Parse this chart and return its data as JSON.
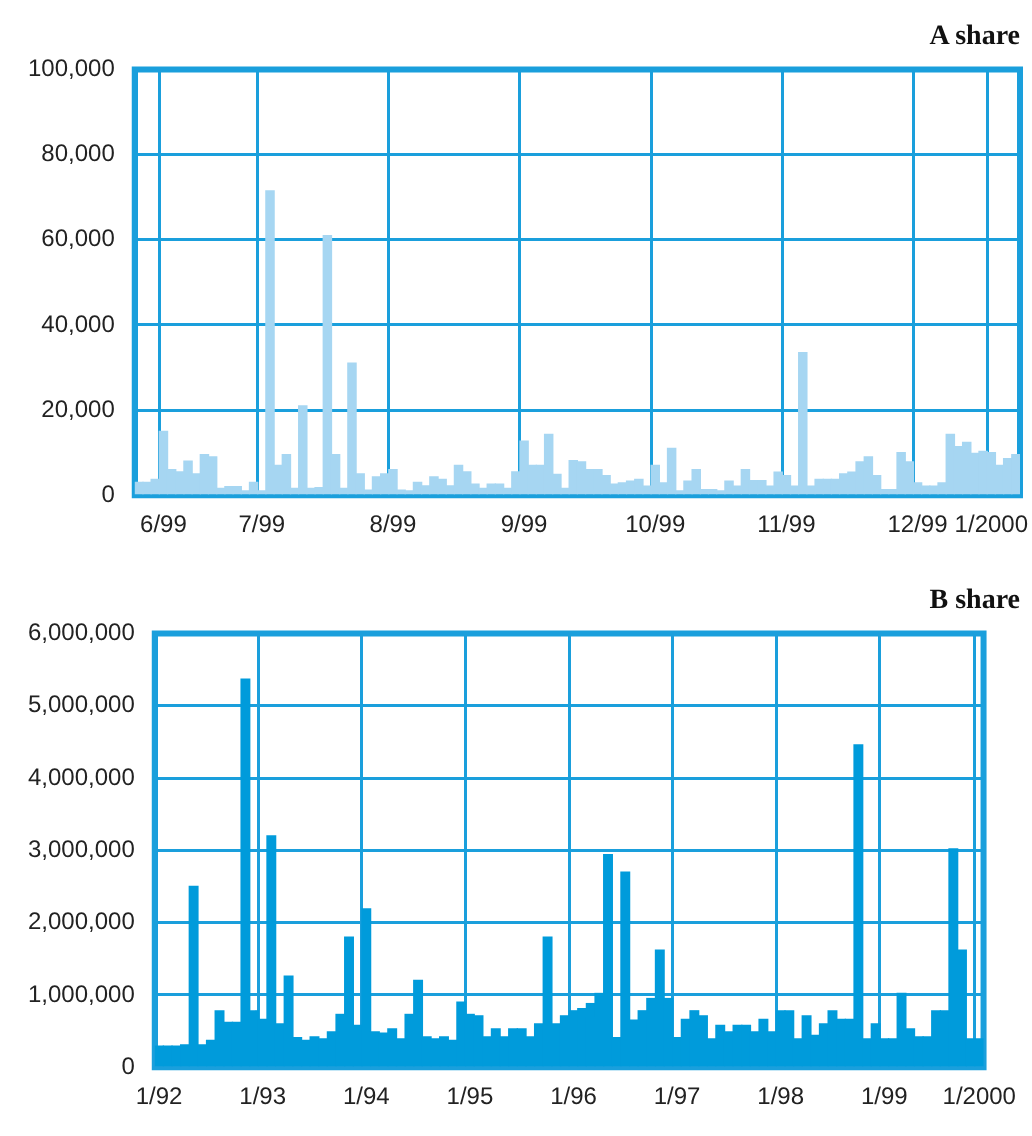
{
  "chart_data": [
    {
      "type": "bar",
      "title": "A share",
      "categories": [
        null,
        null,
        null,
        "6/99",
        null,
        null,
        null,
        null,
        null,
        null,
        null,
        null,
        null,
        null,
        null,
        "7/99",
        null,
        null,
        null,
        null,
        null,
        null,
        null,
        null,
        null,
        null,
        null,
        null,
        null,
        null,
        null,
        "8/99",
        null,
        null,
        null,
        null,
        null,
        null,
        null,
        null,
        null,
        null,
        null,
        null,
        null,
        null,
        null,
        "9/99",
        null,
        null,
        null,
        null,
        null,
        null,
        null,
        null,
        null,
        null,
        null,
        null,
        null,
        null,
        null,
        "10/99",
        null,
        null,
        null,
        null,
        null,
        null,
        null,
        null,
        null,
        null,
        null,
        null,
        null,
        null,
        null,
        "11/99",
        null,
        null,
        null,
        null,
        null,
        null,
        null,
        null,
        null,
        null,
        null,
        null,
        null,
        null,
        null,
        "12/99",
        null,
        null,
        null,
        null,
        null,
        null,
        null,
        null,
        "1/2000",
        null,
        null,
        null
      ],
      "values": [
        3000,
        3000,
        3700,
        15000,
        6000,
        5500,
        8000,
        5000,
        9500,
        9000,
        1600,
        2000,
        2000,
        1000,
        3000,
        1000,
        71500,
        7000,
        9500,
        1600,
        21000,
        1600,
        1800,
        61000,
        9500,
        1600,
        31000,
        5000,
        1200,
        4300,
        5000,
        6000,
        1200,
        1000,
        3000,
        2200,
        4300,
        3700,
        2200,
        7000,
        5500,
        2600,
        1600,
        2600,
        2600,
        1600,
        5500,
        12700,
        7000,
        7000,
        14300,
        4900,
        1600,
        8100,
        7800,
        6000,
        6000,
        4600,
        2600,
        2900,
        3300,
        3700,
        2100,
        7000,
        2900,
        11000,
        1000,
        3300,
        6000,
        1300,
        1300,
        1000,
        3300,
        2100,
        6000,
        3400,
        3400,
        2100,
        5400,
        4600,
        2100,
        33500,
        2100,
        3700,
        3700,
        3700,
        5000,
        5400,
        7800,
        9000,
        4600,
        1300,
        1300,
        10000,
        7800,
        2900,
        2100,
        2100,
        2900,
        14300,
        11400,
        12400,
        9800,
        10300,
        10000,
        7000,
        8600,
        9500
      ],
      "color": "#a6d6f2",
      "ylim": [
        0,
        100000
      ],
      "yticks": [
        0,
        {
          "value": 20000,
          "label": "20,000"
        },
        {
          "value": 40000,
          "label": "40,000"
        },
        {
          "value": 60000,
          "label": "60,000"
        },
        {
          "value": 80000,
          "label": "80,000"
        },
        {
          "value": 100000,
          "label": "100,000"
        }
      ],
      "grid": true,
      "legend": false
    },
    {
      "type": "bar",
      "title": "B share",
      "categories": [
        "1/92",
        null,
        null,
        null,
        null,
        null,
        null,
        null,
        null,
        null,
        null,
        null,
        "1/93",
        null,
        null,
        null,
        null,
        null,
        null,
        null,
        null,
        null,
        null,
        null,
        "1/94",
        null,
        null,
        null,
        null,
        null,
        null,
        null,
        null,
        null,
        null,
        null,
        "1/95",
        null,
        null,
        null,
        null,
        null,
        null,
        null,
        null,
        null,
        null,
        null,
        "1/96",
        null,
        null,
        null,
        null,
        null,
        null,
        null,
        null,
        null,
        null,
        null,
        "1/97",
        null,
        null,
        null,
        null,
        null,
        null,
        null,
        null,
        null,
        null,
        null,
        "1/98",
        null,
        null,
        null,
        null,
        null,
        null,
        null,
        null,
        null,
        null,
        null,
        "1/99",
        null,
        null,
        null,
        null,
        null,
        null,
        null,
        null,
        null,
        null,
        "1/2000"
      ],
      "values": [
        290000,
        290000,
        290000,
        310000,
        2500000,
        310000,
        370000,
        780000,
        620000,
        620000,
        5370000,
        780000,
        660000,
        3200000,
        600000,
        1260000,
        410000,
        370000,
        420000,
        390000,
        490000,
        730000,
        1800000,
        580000,
        2190000,
        490000,
        470000,
        530000,
        390000,
        730000,
        1200000,
        420000,
        390000,
        420000,
        370000,
        900000,
        730000,
        710000,
        420000,
        530000,
        420000,
        530000,
        530000,
        420000,
        600000,
        1800000,
        600000,
        710000,
        780000,
        810000,
        880000,
        1020000,
        2940000,
        410000,
        2700000,
        650000,
        780000,
        950000,
        1620000,
        950000,
        410000,
        660000,
        780000,
        710000,
        390000,
        580000,
        490000,
        580000,
        580000,
        490000,
        660000,
        490000,
        780000,
        780000,
        390000,
        710000,
        440000,
        600000,
        780000,
        660000,
        660000,
        4460000,
        390000,
        600000,
        390000,
        390000,
        1020000,
        530000,
        420000,
        420000,
        780000,
        780000,
        3020000,
        1620000,
        390000,
        390000
      ],
      "color": "#009bdb",
      "ylim": [
        0,
        6000000
      ],
      "yticks": [
        0,
        {
          "value": 1000000,
          "label": "1,000,000"
        },
        {
          "value": 2000000,
          "label": "2,000,000"
        },
        {
          "value": 3000000,
          "label": "3,000,000"
        },
        {
          "value": 4000000,
          "label": "4,000,000"
        },
        {
          "value": 5000000,
          "label": "5,000,000"
        },
        {
          "value": 6000000,
          "label": "6,000,000"
        }
      ],
      "grid": true,
      "legend": false
    }
  ]
}
